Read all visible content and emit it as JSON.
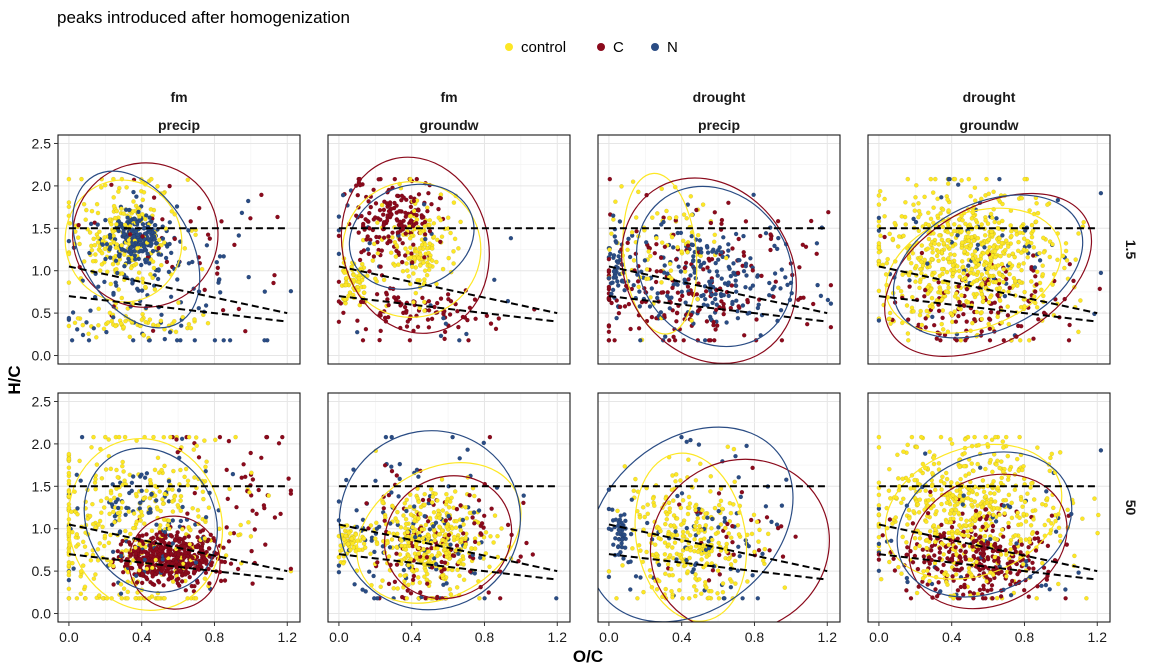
{
  "chart_data": {
    "type": "scatter",
    "title": "peaks introduced after homogenization",
    "xlabel": "O/C",
    "ylabel": "H/C",
    "xlim": [
      -0.06,
      1.27
    ],
    "ylim": [
      -0.1,
      2.6
    ],
    "xticks": [
      0.0,
      0.4,
      0.8,
      1.2
    ],
    "xtick_labels": [
      "0.0",
      "0.4",
      "0.8",
      "1.2"
    ],
    "yticks": [
      0.0,
      0.5,
      1.0,
      1.5,
      2.0,
      2.5
    ],
    "ytick_labels": [
      "0.0",
      "0.5",
      "1.0",
      "1.5",
      "2.0",
      "2.5"
    ],
    "legend": {
      "position": "top",
      "entries": [
        {
          "name": "control",
          "color": "#FDE725"
        },
        {
          "name": "C",
          "color": "#8B0A1C"
        },
        {
          "name": "N",
          "color": "#2A4C84"
        }
      ]
    },
    "column_strips": [
      {
        "top": "fm",
        "bottom": "precip"
      },
      {
        "top": "fm",
        "bottom": "groundw"
      },
      {
        "top": "drought",
        "bottom": "precip"
      },
      {
        "top": "drought",
        "bottom": "groundw"
      }
    ],
    "row_strips": [
      "1.5",
      "50"
    ],
    "reference_lines": [
      {
        "name": "hc-1.5",
        "x": [
          0.0,
          1.2
        ],
        "y": [
          1.5,
          1.5
        ]
      },
      {
        "name": "upper-boundary",
        "x": [
          0.0,
          1.2
        ],
        "y": [
          1.05,
          0.5
        ]
      },
      {
        "name": "lower-boundary",
        "x": [
          0.0,
          1.2
        ],
        "y": [
          0.7,
          0.4
        ]
      }
    ],
    "panels": [
      {
        "row": "1.5",
        "col": 0,
        "clusters": [
          {
            "series": "control",
            "n": 230,
            "cx": 0.3,
            "cy": 1.4,
            "sx": 0.15,
            "sy": 0.35
          },
          {
            "series": "control",
            "n": 60,
            "cx": 0.3,
            "cy": 0.35,
            "sx": 0.2,
            "sy": 0.08
          },
          {
            "series": "N",
            "n": 200,
            "cx": 0.35,
            "cy": 1.4,
            "sx": 0.08,
            "sy": 0.15
          },
          {
            "series": "N",
            "n": 120,
            "cx": 0.45,
            "cy": 0.9,
            "sx": 0.3,
            "sy": 0.5
          },
          {
            "series": "C",
            "n": 40,
            "cx": 0.6,
            "cy": 1.2,
            "sx": 0.3,
            "sy": 0.5
          }
        ],
        "ellipses": [
          {
            "series": "control",
            "cx": 0.3,
            "cy": 1.35,
            "a": 0.32,
            "b": 0.72,
            "angle": -12
          },
          {
            "series": "C",
            "cx": 0.42,
            "cy": 1.42,
            "a": 0.4,
            "b": 0.85,
            "angle": -25
          },
          {
            "series": "N",
            "cx": 0.37,
            "cy": 1.25,
            "a": 0.3,
            "b": 1.0,
            "angle": -30
          }
        ]
      },
      {
        "row": "1.5",
        "col": 1,
        "clusters": [
          {
            "series": "C",
            "n": 180,
            "cx": 0.3,
            "cy": 1.6,
            "sx": 0.12,
            "sy": 0.25
          },
          {
            "series": "C",
            "n": 90,
            "cx": 0.45,
            "cy": 0.5,
            "sx": 0.25,
            "sy": 0.15
          },
          {
            "series": "control",
            "n": 150,
            "cx": 0.45,
            "cy": 1.3,
            "sx": 0.1,
            "sy": 0.3
          },
          {
            "series": "control",
            "n": 60,
            "cx": 0.08,
            "cy": 0.85,
            "sx": 0.04,
            "sy": 0.15
          },
          {
            "series": "N",
            "n": 25,
            "cx": 0.5,
            "cy": 1.0,
            "sx": 0.3,
            "sy": 0.5
          }
        ],
        "ellipses": [
          {
            "series": "control",
            "cx": 0.4,
            "cy": 1.25,
            "a": 0.38,
            "b": 0.8,
            "angle": -10
          },
          {
            "series": "C",
            "cx": 0.42,
            "cy": 1.3,
            "a": 0.4,
            "b": 1.05,
            "angle": -15
          },
          {
            "series": "N",
            "cx": 0.4,
            "cy": 1.4,
            "a": 0.35,
            "b": 0.6,
            "angle": -20
          }
        ]
      },
      {
        "row": "1.5",
        "col": 2,
        "clusters": [
          {
            "series": "C",
            "n": 200,
            "cx": 0.45,
            "cy": 0.8,
            "sx": 0.3,
            "sy": 0.45
          },
          {
            "series": "N",
            "n": 220,
            "cx": 0.55,
            "cy": 0.9,
            "sx": 0.25,
            "sy": 0.35
          },
          {
            "series": "control",
            "n": 80,
            "cx": 0.3,
            "cy": 1.3,
            "sx": 0.15,
            "sy": 0.4
          },
          {
            "series": "N",
            "n": 40,
            "cx": 0.04,
            "cy": 1.0,
            "sx": 0.02,
            "sy": 0.2
          }
        ],
        "ellipses": [
          {
            "series": "control",
            "cx": 0.28,
            "cy": 1.2,
            "a": 0.2,
            "b": 0.95,
            "angle": -5
          },
          {
            "series": "C",
            "cx": 0.55,
            "cy": 1.0,
            "a": 0.45,
            "b": 1.15,
            "angle": -35
          },
          {
            "series": "N",
            "cx": 0.58,
            "cy": 1.05,
            "a": 0.4,
            "b": 1.0,
            "angle": -40
          }
        ]
      },
      {
        "row": "1.5",
        "col": 3,
        "clusters": [
          {
            "series": "control",
            "n": 650,
            "cx": 0.5,
            "cy": 1.15,
            "sx": 0.25,
            "sy": 0.42
          },
          {
            "series": "C",
            "n": 120,
            "cx": 0.55,
            "cy": 0.6,
            "sx": 0.22,
            "sy": 0.25
          },
          {
            "series": "N",
            "n": 60,
            "cx": 0.6,
            "cy": 1.3,
            "sx": 0.3,
            "sy": 0.45
          }
        ],
        "ellipses": [
          {
            "series": "control",
            "cx": 0.52,
            "cy": 1.0,
            "a": 0.5,
            "b": 0.68,
            "angle": -20
          },
          {
            "series": "C",
            "cx": 0.6,
            "cy": 0.95,
            "a": 0.62,
            "b": 0.8,
            "angle": -30
          },
          {
            "series": "N",
            "cx": 0.6,
            "cy": 1.05,
            "a": 0.55,
            "b": 0.75,
            "angle": -25
          }
        ]
      },
      {
        "row": "50",
        "col": 0,
        "clusters": [
          {
            "series": "control",
            "n": 400,
            "cx": 0.35,
            "cy": 1.0,
            "sx": 0.3,
            "sy": 0.55
          },
          {
            "series": "C",
            "n": 450,
            "cx": 0.55,
            "cy": 0.65,
            "sx": 0.13,
            "sy": 0.15
          },
          {
            "series": "N",
            "n": 100,
            "cx": 0.4,
            "cy": 1.1,
            "sx": 0.2,
            "sy": 0.4
          },
          {
            "series": "C",
            "n": 50,
            "cx": 0.95,
            "cy": 1.5,
            "sx": 0.2,
            "sy": 0.45
          }
        ],
        "ellipses": [
          {
            "series": "control",
            "cx": 0.42,
            "cy": 1.05,
            "a": 0.42,
            "b": 1.02,
            "angle": -15
          },
          {
            "series": "C",
            "cx": 0.58,
            "cy": 0.6,
            "a": 0.25,
            "b": 0.55,
            "angle": -20
          },
          {
            "series": "N",
            "cx": 0.45,
            "cy": 1.1,
            "a": 0.35,
            "b": 0.88,
            "angle": -30
          }
        ]
      },
      {
        "row": "50",
        "col": 1,
        "clusters": [
          {
            "series": "control",
            "n": 380,
            "cx": 0.5,
            "cy": 0.85,
            "sx": 0.15,
            "sy": 0.3
          },
          {
            "series": "control",
            "n": 60,
            "cx": 0.06,
            "cy": 0.85,
            "sx": 0.04,
            "sy": 0.1
          },
          {
            "series": "C",
            "n": 120,
            "cx": 0.55,
            "cy": 0.8,
            "sx": 0.2,
            "sy": 0.4
          },
          {
            "series": "N",
            "n": 110,
            "cx": 0.4,
            "cy": 1.0,
            "sx": 0.25,
            "sy": 0.45
          }
        ],
        "ellipses": [
          {
            "series": "control",
            "cx": 0.55,
            "cy": 0.95,
            "a": 0.48,
            "b": 0.75,
            "angle": -30
          },
          {
            "series": "C",
            "cx": 0.6,
            "cy": 0.9,
            "a": 0.36,
            "b": 0.7,
            "angle": -35
          },
          {
            "series": "N",
            "cx": 0.5,
            "cy": 1.1,
            "a": 0.5,
            "b": 1.05,
            "angle": -30
          }
        ]
      },
      {
        "row": "50",
        "col": 2,
        "clusters": [
          {
            "series": "control",
            "n": 300,
            "cx": 0.45,
            "cy": 0.85,
            "sx": 0.18,
            "sy": 0.4
          },
          {
            "series": "N",
            "n": 80,
            "cx": 0.45,
            "cy": 1.0,
            "sx": 0.25,
            "sy": 0.5
          },
          {
            "series": "N",
            "n": 40,
            "cx": 0.06,
            "cy": 0.9,
            "sx": 0.02,
            "sy": 0.15
          },
          {
            "series": "C",
            "n": 30,
            "cx": 0.7,
            "cy": 0.9,
            "sx": 0.2,
            "sy": 0.35
          }
        ],
        "ellipses": [
          {
            "series": "control",
            "cx": 0.45,
            "cy": 0.9,
            "a": 0.3,
            "b": 1.0,
            "angle": -10
          },
          {
            "series": "C",
            "cx": 0.72,
            "cy": 0.8,
            "a": 0.5,
            "b": 1.0,
            "angle": -30
          },
          {
            "series": "N",
            "cx": 0.45,
            "cy": 1.05,
            "a": 0.62,
            "b": 1.0,
            "angle": -40
          }
        ]
      },
      {
        "row": "50",
        "col": 3,
        "clusters": [
          {
            "series": "control",
            "n": 550,
            "cx": 0.5,
            "cy": 1.2,
            "sx": 0.25,
            "sy": 0.45
          },
          {
            "series": "C",
            "n": 300,
            "cx": 0.55,
            "cy": 0.65,
            "sx": 0.2,
            "sy": 0.25
          },
          {
            "series": "N",
            "n": 50,
            "cx": 0.55,
            "cy": 1.0,
            "sx": 0.3,
            "sy": 0.45
          }
        ],
        "ellipses": [
          {
            "series": "control",
            "cx": 0.52,
            "cy": 1.2,
            "a": 0.5,
            "b": 0.75,
            "angle": -20
          },
          {
            "series": "C",
            "cx": 0.6,
            "cy": 0.85,
            "a": 0.45,
            "b": 0.75,
            "angle": -25
          },
          {
            "series": "N",
            "cx": 0.58,
            "cy": 1.05,
            "a": 0.5,
            "b": 0.8,
            "angle": -25
          }
        ]
      }
    ]
  }
}
